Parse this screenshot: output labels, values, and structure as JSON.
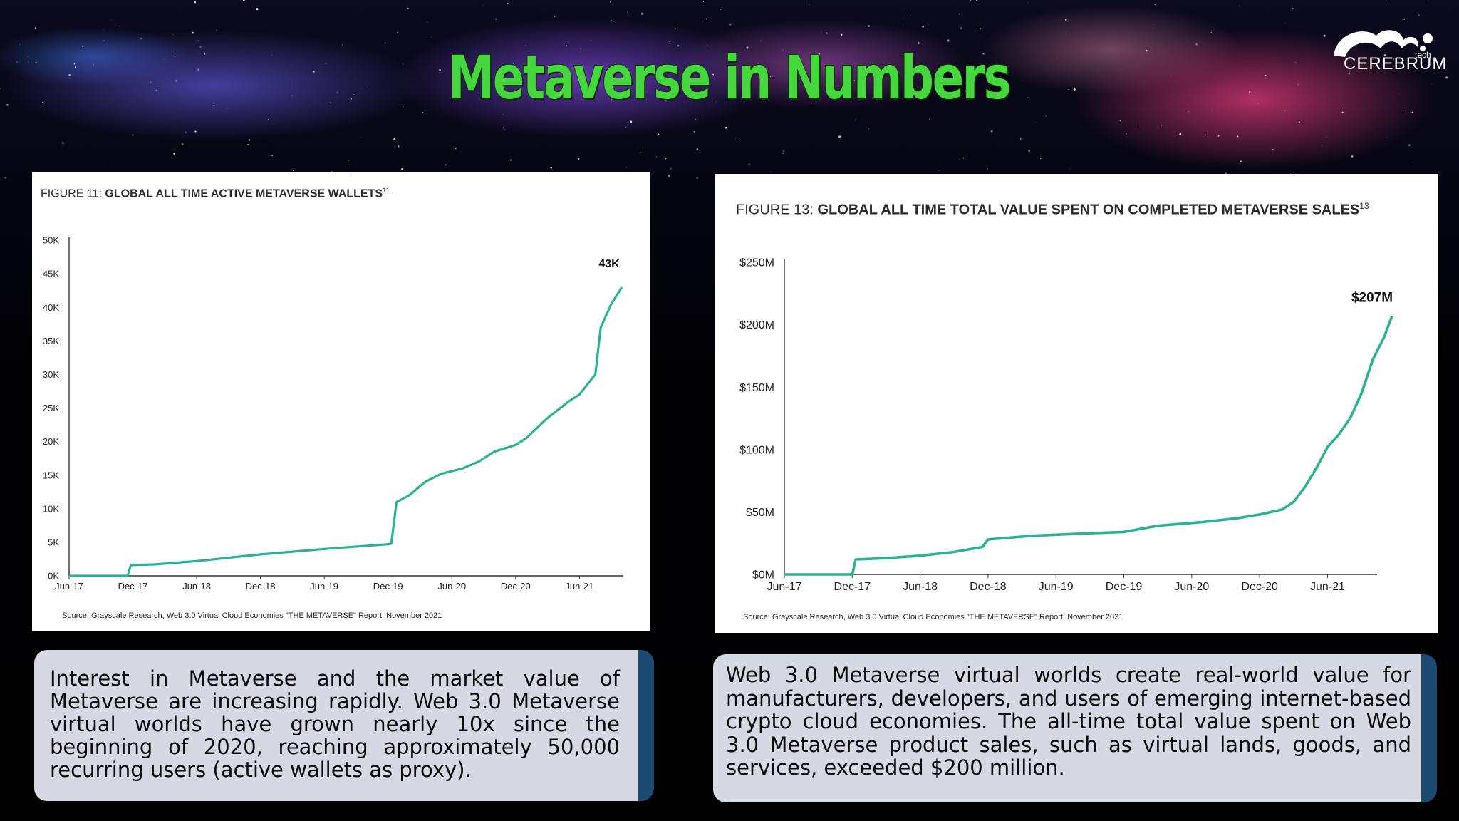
{
  "header": {
    "title": "Metaverse in Numbers",
    "logo_text": "CEREBRUM",
    "logo_subtext": "tech"
  },
  "colors": {
    "title_green": "#46d63e",
    "line_teal": "#2bb391",
    "box_accent": "#1c4a72"
  },
  "chart_data": [
    {
      "type": "line",
      "figure_label": "FIGURE 11:",
      "title": "GLOBAL ALL TIME ACTIVE METAVERSE WALLETS",
      "superscript": "11",
      "x_ticks": [
        "Jun-17",
        "Dec-17",
        "Jun-18",
        "Dec-18",
        "Jun-19",
        "Dec-19",
        "Jun-20",
        "Dec-20",
        "Jun-21"
      ],
      "y_ticks": [
        "0K",
        "5K",
        "10K",
        "15K",
        "20K",
        "25K",
        "30K",
        "35K",
        "40K",
        "45K",
        "50K"
      ],
      "ylim": [
        0,
        50000
      ],
      "x_unit": "months since Jun-17",
      "xlim": [
        0,
        52
      ],
      "series": [
        {
          "points": [
            [
              0,
              0
            ],
            [
              5.5,
              0
            ],
            [
              5.8,
              1600
            ],
            [
              8,
              1700
            ],
            [
              12,
              2200
            ],
            [
              18,
              3200
            ],
            [
              24,
              4000
            ],
            [
              30,
              4700
            ],
            [
              30.3,
              4800
            ],
            [
              30.8,
              11000
            ],
            [
              32,
              12000
            ],
            [
              33.5,
              14000
            ],
            [
              35,
              15200
            ],
            [
              37,
              16000
            ],
            [
              38.5,
              17000
            ],
            [
              40,
              18500
            ],
            [
              42,
              19500
            ],
            [
              43,
              20500
            ],
            [
              45,
              23500
            ],
            [
              47,
              26000
            ],
            [
              48,
              27000
            ],
            [
              49,
              29000
            ],
            [
              49.5,
              30000
            ],
            [
              50,
              37000
            ],
            [
              51,
              40500
            ],
            [
              52,
              43000
            ]
          ],
          "end_label": "43K"
        }
      ],
      "grid": false,
      "source": "Source: Grayscale Research, Web 3.0 Virtual Cloud Economies \"THE METAVERSE\" Report, November 2021"
    },
    {
      "type": "line",
      "figure_label": "FIGURE 13:",
      "title": "GLOBAL ALL TIME TOTAL VALUE SPENT ON COMPLETED METAVERSE SALES",
      "superscript": "13",
      "x_ticks": [
        "Jun-17",
        "Dec-17",
        "Jun-18",
        "Dec-18",
        "Jun-19",
        "Dec-19",
        "Jun-20",
        "Dec-20",
        "Jun-21"
      ],
      "y_ticks": [
        "$0M",
        "$50M",
        "$100M",
        "$150M",
        "$200M",
        "$250M"
      ],
      "ylim": [
        0,
        250
      ],
      "x_unit": "months since Jun-17",
      "xlim": [
        0,
        52
      ],
      "series": [
        {
          "points": [
            [
              0,
              0
            ],
            [
              6,
              0
            ],
            [
              6.3,
              12
            ],
            [
              9,
              13
            ],
            [
              12,
              15
            ],
            [
              15,
              18
            ],
            [
              17.5,
              22
            ],
            [
              18,
              28
            ],
            [
              22,
              31
            ],
            [
              27,
              33
            ],
            [
              30,
              34
            ],
            [
              33,
              39
            ],
            [
              37,
              42
            ],
            [
              40,
              45
            ],
            [
              42,
              48
            ],
            [
              44,
              52
            ],
            [
              45,
              58
            ],
            [
              46,
              70
            ],
            [
              47,
              85
            ],
            [
              48,
              102
            ],
            [
              49,
              112
            ],
            [
              50,
              125
            ],
            [
              51,
              145
            ],
            [
              52,
              172
            ],
            [
              53,
              190
            ],
            [
              53.7,
              207
            ]
          ],
          "end_label": "$207M"
        }
      ],
      "grid": false,
      "source": "Source: Grayscale Research, Web 3.0 Virtual Cloud Economies \"THE METAVERSE\" Report, November 2021"
    }
  ],
  "text_boxes": {
    "left": "Interest in Metaverse and the market value of Metaverse are increasing rapidly. Web 3.0 Metaverse virtual worlds have grown nearly 10x since the beginning of 2020, reaching approximately 50,000 recurring users (active wallets as proxy).",
    "right": "Web 3.0 Metaverse virtual worlds create real-world value for manufacturers, developers, and users of emerging internet-based crypto cloud economies. The all-time total value spent on Web 3.0 Metaverse product sales, such as virtual lands, goods, and services, exceeded $200 million."
  }
}
